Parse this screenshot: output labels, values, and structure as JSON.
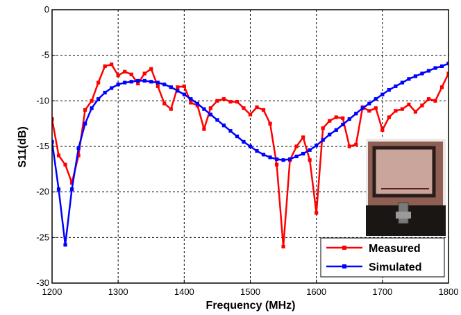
{
  "chart_data": {
    "type": "line",
    "xlabel": "Frequency (MHz)",
    "ylabel": "S11(dB)",
    "xlim": [
      1200,
      1800
    ],
    "ylim": [
      -30,
      0
    ],
    "xticks": [
      1200,
      1300,
      1400,
      1500,
      1600,
      1700,
      1800
    ],
    "yticks": [
      0,
      -5,
      -10,
      -15,
      -20,
      -25,
      -30
    ],
    "grid": true,
    "grid_style": "dashed",
    "legend_position": "bottom-right",
    "inset": "photograph of the antenna prototype",
    "series": [
      {
        "name": "Measured",
        "color": "#ff0000",
        "marker": "square",
        "x": [
          1200,
          1210,
          1220,
          1230,
          1240,
          1250,
          1260,
          1270,
          1280,
          1290,
          1300,
          1310,
          1320,
          1330,
          1340,
          1350,
          1360,
          1370,
          1380,
          1390,
          1400,
          1410,
          1420,
          1430,
          1440,
          1450,
          1460,
          1470,
          1480,
          1490,
          1500,
          1510,
          1520,
          1530,
          1540,
          1550,
          1560,
          1570,
          1580,
          1590,
          1600,
          1610,
          1620,
          1630,
          1640,
          1650,
          1660,
          1670,
          1680,
          1690,
          1700,
          1710,
          1720,
          1730,
          1740,
          1750,
          1760,
          1770,
          1780,
          1790,
          1800
        ],
        "y": [
          -12,
          -16,
          -17,
          -19,
          -16,
          -11,
          -10,
          -8,
          -6.2,
          -6,
          -7.2,
          -6.8,
          -7.1,
          -8.1,
          -7,
          -6.5,
          -8.4,
          -10.3,
          -10.9,
          -8.5,
          -8.4,
          -10.2,
          -10.5,
          -13.1,
          -10.8,
          -10,
          -9.8,
          -10.1,
          -10.1,
          -10.8,
          -11.5,
          -10.7,
          -11,
          -12.5,
          -17,
          -26,
          -16.5,
          -15,
          -14,
          -16.5,
          -22.3,
          -13,
          -12.2,
          -11.8,
          -11.9,
          -15,
          -14.8,
          -10.7,
          -11.1,
          -10.8,
          -13.2,
          -11.8,
          -11.1,
          -10.9,
          -10.4,
          -11.2,
          -10.5,
          -9.8,
          -10,
          -8.5,
          -7
        ]
      },
      {
        "name": "Simulated",
        "color": "#0000ff",
        "marker": "square",
        "x": [
          1200,
          1210,
          1220,
          1230,
          1240,
          1250,
          1260,
          1270,
          1280,
          1290,
          1300,
          1310,
          1320,
          1330,
          1340,
          1350,
          1360,
          1370,
          1380,
          1390,
          1400,
          1410,
          1420,
          1430,
          1440,
          1450,
          1460,
          1470,
          1480,
          1490,
          1500,
          1510,
          1520,
          1530,
          1540,
          1550,
          1560,
          1570,
          1580,
          1590,
          1600,
          1610,
          1620,
          1630,
          1640,
          1650,
          1660,
          1670,
          1680,
          1690,
          1700,
          1710,
          1720,
          1730,
          1740,
          1750,
          1760,
          1770,
          1780,
          1790,
          1800
        ],
        "y": [
          -14.5,
          -19.7,
          -25.8,
          -19.7,
          -15.2,
          -12.5,
          -10.8,
          -9.8,
          -9.1,
          -8.6,
          -8.2,
          -8,
          -7.9,
          -7.8,
          -7.8,
          -7.9,
          -8,
          -8.2,
          -8.5,
          -8.9,
          -9.3,
          -9.8,
          -10.3,
          -10.9,
          -11.5,
          -12.1,
          -12.7,
          -13.3,
          -13.9,
          -14.5,
          -15,
          -15.5,
          -15.9,
          -16.2,
          -16.4,
          -16.5,
          -16.4,
          -16.1,
          -15.8,
          -15.4,
          -14.9,
          -14.3,
          -13.7,
          -13.2,
          -12.6,
          -12,
          -11.4,
          -10.8,
          -10.3,
          -9.8,
          -9.3,
          -8.8,
          -8.4,
          -8,
          -7.6,
          -7.3,
          -7,
          -6.7,
          -6.4,
          -6.2,
          -5.9
        ]
      }
    ]
  }
}
